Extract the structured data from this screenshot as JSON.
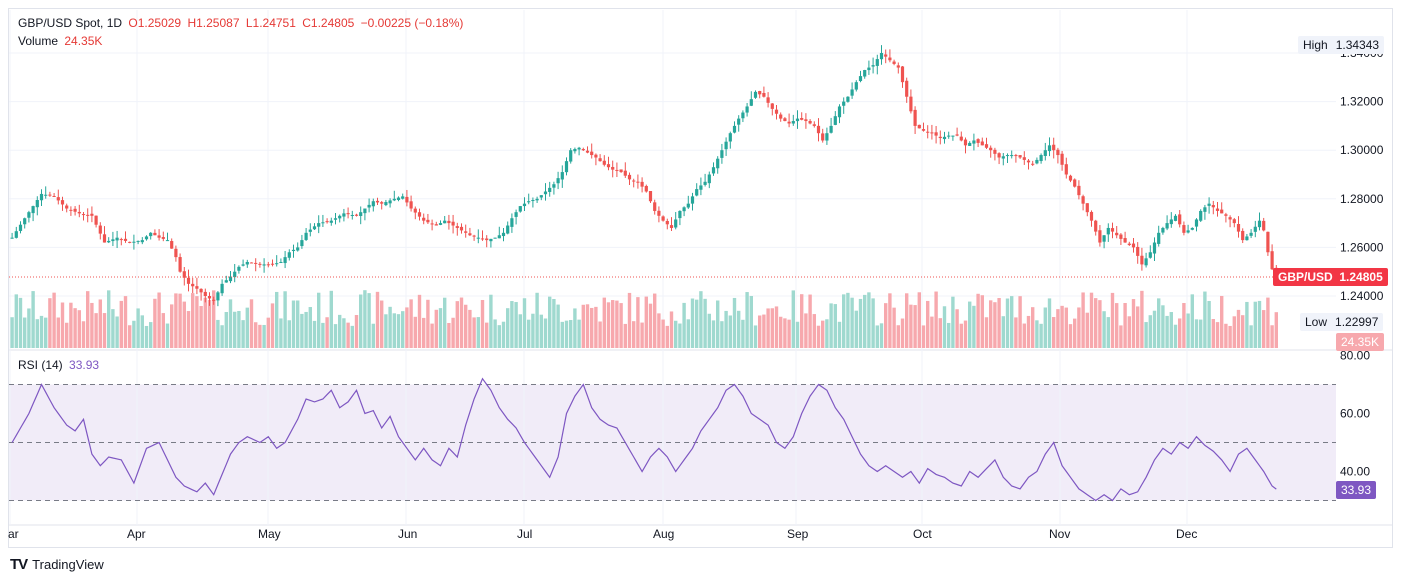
{
  "legend": {
    "symbol": "GBP/USD Spot, 1D",
    "open": "O1.25029",
    "high": "H1.25087",
    "low": "L1.24751",
    "close": "C1.24805",
    "change": "−0.00225 (−0.18%)",
    "volume_label": "Volume",
    "volume_value": "24.35K",
    "rsi_label": "RSI (14)",
    "rsi_value": "33.93"
  },
  "price_axis": [
    "1.34000",
    "1.32000",
    "1.30000",
    "1.28000",
    "1.26000",
    "1.24000"
  ],
  "rsi_axis": [
    "80.00",
    "60.00",
    "40.00"
  ],
  "time_axis": [
    "ar",
    "Apr",
    "May",
    "Jun",
    "Jul",
    "Aug",
    "Sep",
    "Oct",
    "Nov",
    "Dec"
  ],
  "tags": {
    "high_label": "High",
    "high_value": "1.34343",
    "low_label": "Low",
    "low_value": "1.22997",
    "pair_label": "GBP/USD",
    "last_price": "1.24805",
    "volume_tag": "24.35K",
    "rsi_tag": "33.93"
  },
  "footer": {
    "logo": "TV",
    "brand": "TradingView"
  },
  "colors": {
    "up": "#26a69a",
    "down": "#ef5350",
    "up_vol": "#9fd9cf",
    "down_vol": "#f7a8ad",
    "rsi": "#7e57c2",
    "rsi_band": "#ede7f6"
  },
  "chart_data": {
    "type": "candlestick",
    "title": "GBP/USD Spot, 1D",
    "ylim": [
      1.2275,
      1.3445
    ],
    "rsi_ylim": [
      25,
      84
    ],
    "rsi_levels": [
      70,
      50,
      30
    ],
    "months": [
      "Mar",
      "Apr",
      "May",
      "Jun",
      "Jul",
      "Aug",
      "Sep",
      "Oct",
      "Nov",
      "Dec"
    ],
    "close_path": [
      [
        0,
        1.264
      ],
      [
        3,
        1.272
      ],
      [
        7,
        1.282
      ],
      [
        10,
        1.281
      ],
      [
        13,
        1.276
      ],
      [
        16,
        1.274
      ],
      [
        19,
        1.273
      ],
      [
        22,
        1.262
      ],
      [
        25,
        1.264
      ],
      [
        28,
        1.262
      ],
      [
        31,
        1.263
      ],
      [
        33,
        1.266
      ],
      [
        35,
        1.264
      ],
      [
        37,
        1.263
      ],
      [
        39,
        1.256
      ],
      [
        40,
        1.25
      ],
      [
        42,
        1.245
      ],
      [
        44,
        1.243
      ],
      [
        46,
        1.24
      ],
      [
        48,
        1.238
      ],
      [
        50,
        1.245
      ],
      [
        52,
        1.248
      ],
      [
        54,
        1.252
      ],
      [
        56,
        1.254
      ],
      [
        59,
        1.253
      ],
      [
        62,
        1.253
      ],
      [
        64,
        1.254
      ],
      [
        66,
        1.258
      ],
      [
        68,
        1.26
      ],
      [
        70,
        1.266
      ],
      [
        73,
        1.27
      ],
      [
        76,
        1.271
      ],
      [
        79,
        1.274
      ],
      [
        82,
        1.273
      ],
      [
        84,
        1.276
      ],
      [
        86,
        1.279
      ],
      [
        88,
        1.278
      ],
      [
        91,
        1.28
      ],
      [
        93,
        1.281
      ],
      [
        95,
        1.276
      ],
      [
        98,
        1.271
      ],
      [
        101,
        1.269
      ],
      [
        103,
        1.271
      ],
      [
        105,
        1.269
      ],
      [
        107,
        1.267
      ],
      [
        109,
        1.265
      ],
      [
        111,
        1.264
      ],
      [
        113,
        1.263
      ],
      [
        115,
        1.264
      ],
      [
        117,
        1.266
      ],
      [
        119,
        1.272
      ],
      [
        121,
        1.277
      ],
      [
        123,
        1.279
      ],
      [
        125,
        1.28
      ],
      [
        127,
        1.283
      ],
      [
        129,
        1.286
      ],
      [
        131,
        1.291
      ],
      [
        133,
        1.3
      ],
      [
        135,
        1.301
      ],
      [
        137,
        1.299
      ],
      [
        139,
        1.297
      ],
      [
        141,
        1.294
      ],
      [
        143,
        1.292
      ],
      [
        145,
        1.291
      ],
      [
        147,
        1.288
      ],
      [
        149,
        1.287
      ],
      [
        151,
        1.283
      ],
      [
        153,
        1.275
      ],
      [
        155,
        1.271
      ],
      [
        157,
        1.268
      ],
      [
        159,
        1.275
      ],
      [
        161,
        1.278
      ],
      [
        163,
        1.284
      ],
      [
        165,
        1.287
      ],
      [
        167,
        1.293
      ],
      [
        169,
        1.3
      ],
      [
        171,
        1.307
      ],
      [
        173,
        1.313
      ],
      [
        175,
        1.318
      ],
      [
        177,
        1.324
      ],
      [
        179,
        1.322
      ],
      [
        181,
        1.317
      ],
      [
        183,
        1.313
      ],
      [
        185,
        1.311
      ],
      [
        187,
        1.313
      ],
      [
        189,
        1.312
      ],
      [
        191,
        1.31
      ],
      [
        193,
        1.304
      ],
      [
        195,
        1.31
      ],
      [
        197,
        1.318
      ],
      [
        199,
        1.322
      ],
      [
        201,
        1.328
      ],
      [
        203,
        1.333
      ],
      [
        205,
        1.335
      ],
      [
        207,
        1.34
      ],
      [
        209,
        1.337
      ],
      [
        211,
        1.334
      ],
      [
        213,
        1.322
      ],
      [
        215,
        1.31
      ],
      [
        217,
        1.308
      ],
      [
        219,
        1.307
      ],
      [
        221,
        1.305
      ],
      [
        223,
        1.306
      ],
      [
        225,
        1.306
      ],
      [
        227,
        1.302
      ],
      [
        229,
        1.304
      ],
      [
        231,
        1.302
      ],
      [
        233,
        1.3
      ],
      [
        235,
        1.297
      ],
      [
        237,
        1.298
      ],
      [
        239,
        1.298
      ],
      [
        241,
        1.296
      ],
      [
        243,
        1.294
      ],
      [
        245,
        1.298
      ],
      [
        247,
        1.302
      ],
      [
        249,
        1.298
      ],
      [
        251,
        1.29
      ],
      [
        253,
        1.285
      ],
      [
        255,
        1.278
      ],
      [
        257,
        1.271
      ],
      [
        259,
        1.262
      ],
      [
        261,
        1.268
      ],
      [
        263,
        1.265
      ],
      [
        265,
        1.262
      ],
      [
        267,
        1.26
      ],
      [
        269,
        1.253
      ],
      [
        271,
        1.258
      ],
      [
        273,
        1.266
      ],
      [
        275,
        1.27
      ],
      [
        277,
        1.273
      ],
      [
        279,
        1.266
      ],
      [
        281,
        1.268
      ],
      [
        283,
        1.275
      ],
      [
        285,
        1.278
      ],
      [
        287,
        1.275
      ],
      [
        289,
        1.273
      ],
      [
        291,
        1.27
      ],
      [
        293,
        1.263
      ],
      [
        295,
        1.266
      ],
      [
        297,
        1.271
      ],
      [
        298,
        1.267
      ],
      [
        299,
        1.258
      ],
      [
        300,
        1.251
      ],
      [
        301,
        1.248
      ]
    ],
    "rsi_path": [
      [
        0,
        50
      ],
      [
        4,
        60
      ],
      [
        7,
        70
      ],
      [
        10,
        62
      ],
      [
        13,
        56
      ],
      [
        15,
        54
      ],
      [
        17,
        58
      ],
      [
        19,
        46
      ],
      [
        21,
        42
      ],
      [
        23,
        45
      ],
      [
        26,
        44
      ],
      [
        29,
        36
      ],
      [
        32,
        48
      ],
      [
        35,
        50
      ],
      [
        37,
        44
      ],
      [
        39,
        38
      ],
      [
        41,
        35
      ],
      [
        44,
        33
      ],
      [
        46,
        36
      ],
      [
        48,
        32
      ],
      [
        50,
        39
      ],
      [
        52,
        46
      ],
      [
        54,
        50
      ],
      [
        56,
        52
      ],
      [
        59,
        50
      ],
      [
        61,
        52
      ],
      [
        63,
        48
      ],
      [
        65,
        50
      ],
      [
        68,
        58
      ],
      [
        70,
        65
      ],
      [
        72,
        64
      ],
      [
        74,
        65
      ],
      [
        76,
        68
      ],
      [
        78,
        62
      ],
      [
        80,
        64
      ],
      [
        82,
        68
      ],
      [
        84,
        60
      ],
      [
        86,
        61
      ],
      [
        88,
        55
      ],
      [
        90,
        59
      ],
      [
        92,
        52
      ],
      [
        94,
        48
      ],
      [
        96,
        44
      ],
      [
        98,
        48
      ],
      [
        100,
        44
      ],
      [
        102,
        42
      ],
      [
        104,
        48
      ],
      [
        106,
        45
      ],
      [
        108,
        56
      ],
      [
        110,
        65
      ],
      [
        112,
        72
      ],
      [
        114,
        68
      ],
      [
        116,
        62
      ],
      [
        118,
        58
      ],
      [
        120,
        55
      ],
      [
        122,
        50
      ],
      [
        124,
        46
      ],
      [
        126,
        42
      ],
      [
        128,
        38
      ],
      [
        130,
        45
      ],
      [
        132,
        60
      ],
      [
        134,
        66
      ],
      [
        136,
        70
      ],
      [
        138,
        62
      ],
      [
        140,
        58
      ],
      [
        142,
        56
      ],
      [
        144,
        55
      ],
      [
        146,
        50
      ],
      [
        148,
        45
      ],
      [
        150,
        40
      ],
      [
        152,
        45
      ],
      [
        154,
        48
      ],
      [
        156,
        45
      ],
      [
        158,
        40
      ],
      [
        160,
        44
      ],
      [
        162,
        48
      ],
      [
        164,
        54
      ],
      [
        166,
        58
      ],
      [
        168,
        62
      ],
      [
        170,
        68
      ],
      [
        172,
        70
      ],
      [
        174,
        66
      ],
      [
        176,
        60
      ],
      [
        178,
        58
      ],
      [
        180,
        56
      ],
      [
        182,
        50
      ],
      [
        184,
        48
      ],
      [
        186,
        52
      ],
      [
        188,
        60
      ],
      [
        190,
        66
      ],
      [
        192,
        70
      ],
      [
        194,
        68
      ],
      [
        196,
        62
      ],
      [
        198,
        58
      ],
      [
        200,
        52
      ],
      [
        202,
        46
      ],
      [
        204,
        42
      ],
      [
        206,
        40
      ],
      [
        208,
        42
      ],
      [
        210,
        40
      ],
      [
        212,
        38
      ],
      [
        214,
        40
      ],
      [
        216,
        36
      ],
      [
        218,
        41
      ],
      [
        220,
        39
      ],
      [
        222,
        38
      ],
      [
        224,
        36
      ],
      [
        226,
        35
      ],
      [
        228,
        40
      ],
      [
        230,
        38
      ],
      [
        232,
        41
      ],
      [
        234,
        44
      ],
      [
        236,
        38
      ],
      [
        238,
        35
      ],
      [
        240,
        34
      ],
      [
        242,
        38
      ],
      [
        244,
        40
      ],
      [
        246,
        46
      ],
      [
        248,
        50
      ],
      [
        250,
        42
      ],
      [
        252,
        38
      ],
      [
        254,
        34
      ],
      [
        256,
        32
      ],
      [
        258,
        30
      ],
      [
        260,
        32
      ],
      [
        262,
        30
      ],
      [
        264,
        34
      ],
      [
        266,
        32
      ],
      [
        268,
        33
      ],
      [
        270,
        38
      ],
      [
        272,
        44
      ],
      [
        274,
        48
      ],
      [
        276,
        46
      ],
      [
        278,
        50
      ],
      [
        280,
        48
      ],
      [
        282,
        52
      ],
      [
        284,
        49
      ],
      [
        286,
        47
      ],
      [
        288,
        44
      ],
      [
        290,
        40
      ],
      [
        292,
        46
      ],
      [
        294,
        48
      ],
      [
        296,
        44
      ],
      [
        298,
        40
      ],
      [
        300,
        35
      ],
      [
        301,
        33.93
      ]
    ]
  }
}
